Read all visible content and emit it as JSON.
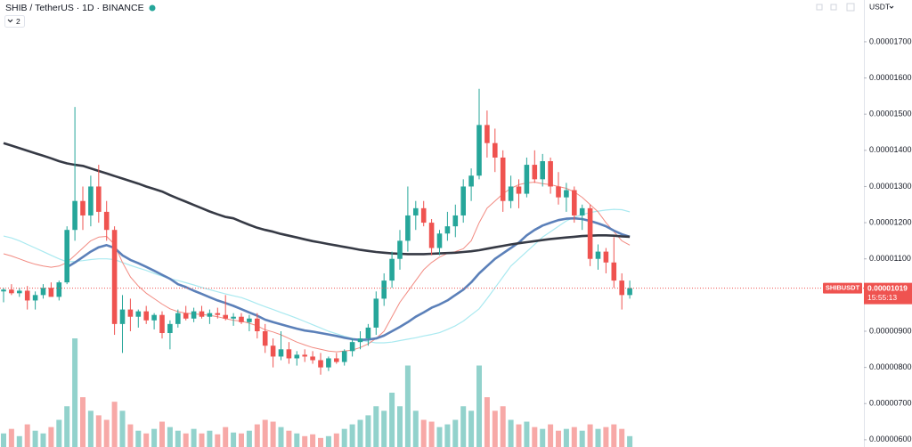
{
  "chart_data": {
    "type": "candlestick",
    "title": "SHIB / TetherUS · 1D · BINANCE",
    "indicators_label": "2",
    "currency": "USDT",
    "symbol_label": "SHIBUSDT",
    "last_price": {
      "value": 1.019e-05,
      "label": "0.00001019"
    },
    "countdown": "15:55:13",
    "ylim": [
      5.8e-06,
      1.8155e-05
    ],
    "yticks": [
      {
        "value": 6e-06,
        "label": "0.00000600"
      },
      {
        "value": 7e-06,
        "label": "0.00000700"
      },
      {
        "value": 8e-06,
        "label": "0.00000800"
      },
      {
        "value": 9e-06,
        "label": "0.00000900"
      },
      {
        "value": 1.1e-05,
        "label": "0.00001100"
      },
      {
        "value": 1.2e-05,
        "label": "0.00001200"
      },
      {
        "value": 1.3e-05,
        "label": "0.00001300"
      },
      {
        "value": 1.4e-05,
        "label": "0.00001400"
      },
      {
        "value": 1.5e-05,
        "label": "0.00001500"
      },
      {
        "value": 1.6e-05,
        "label": "0.00001600"
      },
      {
        "value": 1.7e-05,
        "label": "0.00001700"
      }
    ],
    "up_color": "#26a69a",
    "down_color": "#ef5350",
    "open": [
      1.01e-05,
      1.015e-05,
      1.005e-05,
      1.012e-05,
      9.85e-06,
      1e-05,
      1.02e-05,
      9.95e-06,
      1.035e-05,
      1.18e-05,
      1.26e-05,
      1.22e-05,
      1.3e-05,
      1.23e-05,
      1.18e-05,
      9.2e-06,
      9.6e-06,
      9.4e-06,
      9.55e-06,
      9.3e-06,
      9.45e-06,
      8.95e-06,
      9.2e-06,
      9.5e-06,
      9.35e-06,
      9.55e-06,
      9.4e-06,
      9.5e-06,
      9.45e-06,
      9.35e-06,
      9.4e-06,
      9.25e-06,
      9.35e-06,
      9e-06,
      8.6e-06,
      8.3e-06,
      8.5e-06,
      8.25e-06,
      8.35e-06,
      8.3e-06,
      8.2e-06,
      8e-06,
      8.25e-06,
      8.15e-06,
      8.45e-06,
      8.7e-06,
      8.8e-06,
      9.1e-06,
      9.9e-06,
      1.04e-05,
      1.1e-05,
      1.15e-05,
      1.22e-05,
      1.24e-05,
      1.2e-05,
      1.13e-05,
      1.17e-05,
      1.19e-05,
      1.22e-05,
      1.3e-05,
      1.33e-05,
      1.47e-05,
      1.42e-05,
      1.38e-05,
      1.26e-05,
      1.3e-05,
      1.28e-05,
      1.36e-05,
      1.32e-05,
      1.37e-05,
      1.3e-05,
      1.27e-05,
      1.29e-05,
      1.22e-05,
      1.24e-05,
      1.1e-05,
      1.12e-05,
      1.09e-05,
      1.04e-05,
      1e-05
    ],
    "high": [
      1.02e-05,
      1.03e-05,
      1.02e-05,
      1.025e-05,
      1.01e-05,
      1.03e-05,
      1.035e-05,
      1.04e-05,
      1.19e-05,
      1.52e-05,
      1.3e-05,
      1.33e-05,
      1.36e-05,
      1.26e-05,
      1.19e-05,
      1e-05,
      9.9e-06,
      9.6e-06,
      9.7e-06,
      9.5e-06,
      9.55e-06,
      9.3e-06,
      9.6e-06,
      9.7e-06,
      9.65e-06,
      9.7e-06,
      9.6e-06,
      9.65e-06,
      1e-05,
      9.5e-06,
      9.5e-06,
      9.45e-06,
      9.5e-06,
      9.2e-06,
      8.8e-06,
      9e-06,
      8.7e-06,
      8.45e-06,
      8.5e-06,
      8.45e-06,
      8.4e-06,
      8.3e-06,
      8.4e-06,
      8.5e-06,
      8.8e-06,
      9e-06,
      9.2e-06,
      1.01e-05,
      1.06e-05,
      1.12e-05,
      1.18e-05,
      1.3e-05,
      1.26e-05,
      1.26e-05,
      1.21e-05,
      1.18e-05,
      1.23e-05,
      1.25e-05,
      1.32e-05,
      1.35e-05,
      1.57e-05,
      1.51e-05,
      1.46e-05,
      1.4e-05,
      1.33e-05,
      1.32e-05,
      1.38e-05,
      1.4e-05,
      1.39e-05,
      1.38e-05,
      1.34e-05,
      1.31e-05,
      1.3e-05,
      1.25e-05,
      1.25e-05,
      1.14e-05,
      1.13e-05,
      1.16e-05,
      1.06e-05,
      1.04e-05
    ],
    "low": [
      9.8e-06,
      1e-05,
      9.95e-06,
      9.6e-06,
      9.6e-06,
      9.9e-06,
      1e-05,
      9.85e-06,
      1.03e-05,
      1.15e-05,
      1.18e-05,
      1.19e-05,
      1.2e-05,
      1.15e-05,
      8.9e-06,
      8.4e-06,
      9e-06,
      9.1e-06,
      9.2e-06,
      9.05e-06,
      8.8e-06,
      8.5e-06,
      9.1e-06,
      9.3e-06,
      9.25e-06,
      9.35e-06,
      9.2e-06,
      9.35e-06,
      9.3e-06,
      9.15e-06,
      9.2e-06,
      9e-06,
      8.8e-06,
      8.4e-06,
      8e-06,
      8.2e-06,
      8.1e-06,
      8.05e-06,
      8.15e-06,
      8.1e-06,
      7.8e-06,
      7.9e-06,
      8.1e-06,
      8.05e-06,
      8.3e-06,
      8.5e-06,
      8.6e-06,
      8.9e-06,
      9.7e-06,
      1.02e-05,
      1.07e-05,
      1.12e-05,
      1.18e-05,
      1.19e-05,
      1.11e-05,
      1.11e-05,
      1.15e-05,
      1.16e-05,
      1.2e-05,
      1.26e-05,
      1.32e-05,
      1.38e-05,
      1.34e-05,
      1.23e-05,
      1.24e-05,
      1.24e-05,
      1.27e-05,
      1.31e-05,
      1.3e-05,
      1.28e-05,
      1.25e-05,
      1.23e-05,
      1.2e-05,
      1.18e-05,
      1.08e-05,
      1.07e-05,
      1.06e-05,
      1.02e-05,
      9.6e-06,
      9.9e-06
    ],
    "close": [
      1.015e-05,
      1.005e-05,
      1.012e-05,
      9.85e-06,
      1e-05,
      1.02e-05,
      9.95e-06,
      1.035e-05,
      1.18e-05,
      1.26e-05,
      1.22e-05,
      1.3e-05,
      1.23e-05,
      1.18e-05,
      9.2e-06,
      9.6e-06,
      9.4e-06,
      9.55e-06,
      9.3e-06,
      9.45e-06,
      8.95e-06,
      9.2e-06,
      9.5e-06,
      9.35e-06,
      9.55e-06,
      9.4e-06,
      9.5e-06,
      9.45e-06,
      9.35e-06,
      9.4e-06,
      9.25e-06,
      9.35e-06,
      9e-06,
      8.6e-06,
      8.3e-06,
      8.5e-06,
      8.25e-06,
      8.35e-06,
      8.3e-06,
      8.2e-06,
      8e-06,
      8.25e-06,
      8.15e-06,
      8.45e-06,
      8.7e-06,
      8.8e-06,
      9.1e-06,
      9.9e-06,
      1.04e-05,
      1.1e-05,
      1.15e-05,
      1.22e-05,
      1.24e-05,
      1.2e-05,
      1.13e-05,
      1.17e-05,
      1.19e-05,
      1.22e-05,
      1.3e-05,
      1.33e-05,
      1.47e-05,
      1.42e-05,
      1.38e-05,
      1.26e-05,
      1.3e-05,
      1.28e-05,
      1.36e-05,
      1.32e-05,
      1.37e-05,
      1.3e-05,
      1.27e-05,
      1.29e-05,
      1.22e-05,
      1.24e-05,
      1.1e-05,
      1.12e-05,
      1.09e-05,
      1.04e-05,
      1e-05,
      1.019e-05
    ],
    "volume": [
      15,
      20,
      12,
      25,
      18,
      15,
      22,
      30,
      45,
      120,
      55,
      40,
      35,
      30,
      50,
      40,
      25,
      18,
      15,
      20,
      28,
      22,
      18,
      15,
      20,
      15,
      18,
      14,
      22,
      16,
      15,
      18,
      25,
      30,
      28,
      22,
      18,
      15,
      12,
      14,
      10,
      12,
      15,
      20,
      25,
      30,
      35,
      45,
      40,
      60,
      45,
      90,
      40,
      30,
      28,
      22,
      25,
      30,
      45,
      40,
      90,
      55,
      40,
      45,
      30,
      25,
      28,
      22,
      20,
      25,
      18,
      20,
      22,
      18,
      25,
      20,
      22,
      25,
      20,
      12
    ],
    "moving_averages": [
      {
        "color": "#a9e9f0",
        "width": 1.2,
        "values": [
          1.163e-05,
          1.158e-05,
          1.15e-05,
          1.14e-05,
          1.13e-05,
          1.12e-05,
          1.11e-05,
          1.1e-05,
          1.092e-05,
          1.093e-05,
          1.095e-05,
          1.098e-05,
          1.1e-05,
          1.1e-05,
          1.098e-05,
          1.09e-05,
          1.082e-05,
          1.075e-05,
          1.068e-05,
          1.06e-05,
          1.052e-05,
          1.045e-05,
          1.04e-05,
          1.034e-05,
          1.028e-05,
          1.021e-05,
          1.015e-05,
          1.009e-05,
          1.003e-05,
          9.98e-06,
          9.93e-06,
          9.85e-06,
          9.76e-06,
          9.68e-06,
          9.6e-06,
          9.52e-06,
          9.44e-06,
          9.36e-06,
          9.27e-06,
          9.18e-06,
          9.09e-06,
          9e-06,
          8.93e-06,
          8.86e-06,
          8.8e-06,
          8.75e-06,
          8.71e-06,
          8.68e-06,
          8.68e-06,
          8.7e-06,
          8.74e-06,
          8.78e-06,
          8.82e-06,
          8.87e-06,
          8.91e-06,
          8.96e-06,
          9.05e-06,
          9.15e-06,
          9.28e-06,
          9.45e-06,
          9.62e-06,
          9.9e-06,
          1.02e-05,
          1.05e-05,
          1.08e-05,
          1.1e-05,
          1.12e-05,
          1.14e-05,
          1.16e-05,
          1.175e-05,
          1.19e-05,
          1.205e-05,
          1.215e-05,
          1.222e-05,
          1.228e-05,
          1.232e-05,
          1.235e-05,
          1.237e-05,
          1.236e-05,
          1.23e-05
        ]
      },
      {
        "color": "#f28b82",
        "width": 1,
        "values": [
          1.114e-05,
          1.108e-05,
          1.1e-05,
          1.092e-05,
          1.085e-05,
          1.08e-05,
          1.077e-05,
          1.08e-05,
          1.09e-05,
          1.11e-05,
          1.13e-05,
          1.15e-05,
          1.16e-05,
          1.162e-05,
          1.14e-05,
          1.09e-05,
          1.05e-05,
          1.025e-05,
          1.005e-05,
          9.9e-06,
          9.75e-06,
          9.62e-06,
          9.54e-06,
          9.5e-06,
          9.48e-06,
          9.46e-06,
          9.44e-06,
          9.4e-06,
          9.35e-06,
          9.3e-06,
          9.28e-06,
          9.22e-06,
          9.15e-06,
          9.04e-06,
          8.98e-06,
          8.9e-06,
          8.8e-06,
          8.7e-06,
          8.62e-06,
          8.55e-06,
          8.5e-06,
          8.45e-06,
          8.43e-06,
          8.45e-06,
          8.48e-06,
          8.55e-06,
          8.65e-06,
          8.8e-06,
          9e-06,
          9.4e-06,
          9.8e-06,
          1.01e-05,
          1.04e-05,
          1.07e-05,
          1.09e-05,
          1.105e-05,
          1.115e-05,
          1.12e-05,
          1.128e-05,
          1.15e-05,
          1.2e-05,
          1.24e-05,
          1.26e-05,
          1.28e-05,
          1.295e-05,
          1.305e-05,
          1.31e-05,
          1.312e-05,
          1.308e-05,
          1.305e-05,
          1.3e-05,
          1.295e-05,
          1.285e-05,
          1.27e-05,
          1.25e-05,
          1.23e-05,
          1.2e-05,
          1.175e-05,
          1.15e-05,
          1.138e-05
        ]
      },
      {
        "color": "#5b80b9",
        "width": 2.6,
        "values": [
          null,
          null,
          null,
          null,
          null,
          null,
          null,
          null,
          1.077e-05,
          1.09e-05,
          1.105e-05,
          1.12e-05,
          1.132e-05,
          1.138e-05,
          1.13e-05,
          1.11e-05,
          1.097e-05,
          1.088e-05,
          1.078e-05,
          1.067e-05,
          1.056e-05,
          1.045e-05,
          1.03e-05,
          1.022e-05,
          1.012e-05,
          1.003e-05,
          9.94e-06,
          9.85e-06,
          9.78e-06,
          9.7e-06,
          9.61e-06,
          9.52e-06,
          9.43e-06,
          9.32e-06,
          9.25e-06,
          9.19e-06,
          9.13e-06,
          9.07e-06,
          9.02e-06,
          8.99e-06,
          8.95e-06,
          8.91e-06,
          8.87e-06,
          8.82e-06,
          8.78e-06,
          8.76e-06,
          8.77e-06,
          8.8e-06,
          8.88e-06,
          9e-06,
          9.12e-06,
          9.25e-06,
          9.4e-06,
          9.52e-06,
          9.65e-06,
          9.74e-06,
          9.85e-06,
          1e-05,
          1.015e-05,
          1.035e-05,
          1.06e-05,
          1.08e-05,
          1.1e-05,
          1.115e-05,
          1.13e-05,
          1.145e-05,
          1.165e-05,
          1.18e-05,
          1.192e-05,
          1.2e-05,
          1.207e-05,
          1.211e-05,
          1.212e-05,
          1.21e-05,
          1.205e-05,
          1.198e-05,
          1.19e-05,
          1.178e-05,
          1.168e-05,
          1.161e-05
        ]
      },
      {
        "color": "#363a45",
        "width": 2.6,
        "values": [
          1.42e-05,
          1.413e-05,
          1.406e-05,
          1.399e-05,
          1.392e-05,
          1.385e-05,
          1.378e-05,
          1.37e-05,
          1.364e-05,
          1.36e-05,
          1.357e-05,
          1.35e-05,
          1.343e-05,
          1.336e-05,
          1.329e-05,
          1.322e-05,
          1.315e-05,
          1.308e-05,
          1.3e-05,
          1.293e-05,
          1.286e-05,
          1.276e-05,
          1.267e-05,
          1.258e-05,
          1.249e-05,
          1.24e-05,
          1.231e-05,
          1.223e-05,
          1.216e-05,
          1.212e-05,
          1.203e-05,
          1.194e-05,
          1.186e-05,
          1.18e-05,
          1.175e-05,
          1.169e-05,
          1.164e-05,
          1.159e-05,
          1.154e-05,
          1.149e-05,
          1.145e-05,
          1.141e-05,
          1.137e-05,
          1.133e-05,
          1.129e-05,
          1.125e-05,
          1.122e-05,
          1.119e-05,
          1.117e-05,
          1.115e-05,
          1.114e-05,
          1.113e-05,
          1.113e-05,
          1.113e-05,
          1.114e-05,
          1.115e-05,
          1.116e-05,
          1.117e-05,
          1.119e-05,
          1.121e-05,
          1.124e-05,
          1.128e-05,
          1.132e-05,
          1.136e-05,
          1.14e-05,
          1.143e-05,
          1.146e-05,
          1.149e-05,
          1.152e-05,
          1.155e-05,
          1.157e-05,
          1.159e-05,
          1.161e-05,
          1.163e-05,
          1.164e-05,
          1.165e-05,
          1.165e-05,
          1.164e-05,
          1.162e-05,
          1.161e-05
        ]
      }
    ]
  }
}
